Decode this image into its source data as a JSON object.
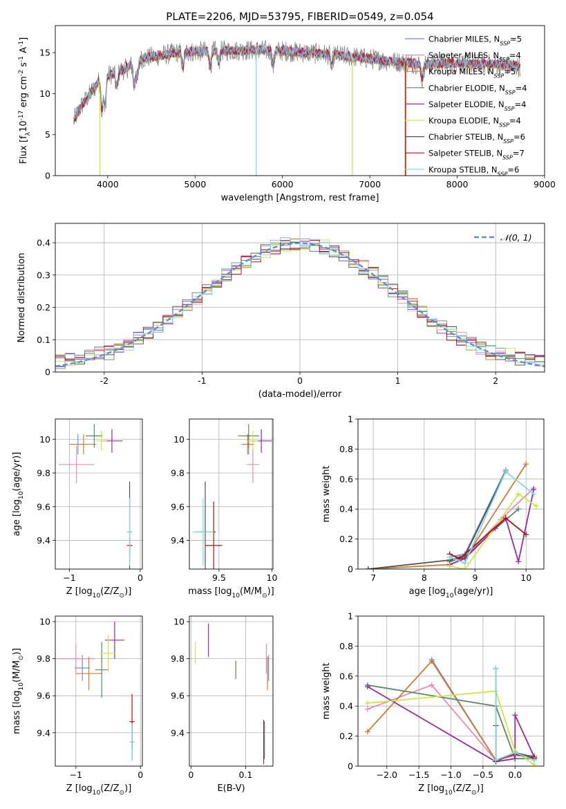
{
  "figure_title": "PLATE=2206, MJD=53795, FIBERID=0549, z=0.054",
  "colors": {
    "chabrier_miles": "#6a8fd8",
    "salpeter_miles": "#e888b8",
    "kroupa_miles": "#d47a30",
    "chabrier_elodie": "#5a8a60",
    "salpeter_elodie": "#9a28a8",
    "kroupa_elodie": "#c8e840",
    "chabrier_stelib": "#505050",
    "salpeter_stelib": "#b01010",
    "kroupa_stelib": "#80d8e0",
    "gauss": "#5b8fd5",
    "grid": "#b0b0b0"
  },
  "chart_data": [
    {
      "id": "spectrum",
      "type": "line",
      "title": "PLATE=2206, MJD=53795, FIBERID=0549, z=0.054",
      "xlabel": "wavelength [Angstrom, rest frame]",
      "ylabel": "Flux [f$_\\lambda$10$^{-17}$ erg cm$^{-2}$ s$^{-1}$ A$^{-1}$]",
      "xlim": [
        3400,
        9000
      ],
      "ylim": [
        0,
        18.3
      ],
      "xticks": [
        4000,
        5000,
        6000,
        7000,
        8000,
        9000
      ],
      "yticks": [
        0,
        5,
        10,
        15
      ],
      "grid": false,
      "legend_position": "right",
      "legend": [
        {
          "base": "Chabrier MILES, N",
          "sub": "SSP",
          "tail": "=5",
          "color_key": "chabrier_miles"
        },
        {
          "base": "Salpeter MILES, N",
          "sub": "SSP",
          "tail": "=4",
          "color_key": "salpeter_miles"
        },
        {
          "base": "Kroupa MILES, N",
          "sub": "SSP",
          "tail": "=5",
          "color_key": "kroupa_miles"
        },
        {
          "base": "Chabrier ELODIE, N",
          "sub": "SSP",
          "tail": "=4",
          "color_key": "chabrier_elodie"
        },
        {
          "base": "Salpeter ELODIE, N",
          "sub": "SSP",
          "tail": "=4",
          "color_key": "salpeter_elodie"
        },
        {
          "base": "Kroupa ELODIE, N",
          "sub": "SSP",
          "tail": "=4",
          "color_key": "kroupa_elodie"
        },
        {
          "base": "Chabrier STELIB, N",
          "sub": "SSP",
          "tail": "=6",
          "color_key": "chabrier_stelib"
        },
        {
          "base": "Salpeter STELIB, N",
          "sub": "SSP",
          "tail": "=7",
          "color_key": "salpeter_stelib"
        },
        {
          "base": "Kroupa STELIB, N",
          "sub": "SSP",
          "tail": "=6",
          "color_key": "kroupa_stelib"
        }
      ],
      "continuum": [
        [
          3600,
          6.5
        ],
        [
          3700,
          8.5
        ],
        [
          3800,
          10.0
        ],
        [
          3900,
          11.5
        ],
        [
          4000,
          12.2
        ],
        [
          4200,
          13.0
        ],
        [
          4400,
          14.3
        ],
        [
          4800,
          15.0
        ],
        [
          5200,
          15.2
        ],
        [
          5600,
          15.3
        ],
        [
          6000,
          15.2
        ],
        [
          6400,
          14.9
        ],
        [
          6800,
          14.5
        ],
        [
          7200,
          14.0
        ],
        [
          7600,
          13.6
        ],
        [
          8000,
          13.7
        ],
        [
          8400,
          13.6
        ],
        [
          8700,
          13.3
        ]
      ],
      "spike_drops": [
        {
          "x": 3910,
          "color_key": "kroupa_elodie"
        },
        {
          "x": 5700,
          "color_key": "kroupa_stelib"
        },
        {
          "x": 6800,
          "color_key": "kroupa_elodie"
        },
        {
          "x": 7405,
          "color_key": "kroupa_miles"
        },
        {
          "x": 7410,
          "color_key": "salpeter_stelib"
        }
      ]
    },
    {
      "id": "residuals",
      "type": "histogram",
      "xlabel": "(data-model)/error",
      "ylabel": "Normed distribution",
      "xlim": [
        -2.5,
        2.5
      ],
      "ylim": [
        0,
        0.46
      ],
      "xticks": [
        -2,
        -1,
        0,
        1,
        2
      ],
      "yticks": [
        0.0,
        0.1,
        0.2,
        0.3,
        0.4
      ],
      "grid": true,
      "bin_width": 0.1,
      "legend": {
        "label": "𝒩(0, 1)",
        "position": "top-right"
      }
    },
    {
      "id": "age_vs_Z",
      "type": "errorbar",
      "xlabel": "Z [log$_{10}$(Z/Z$_\\odot$)]",
      "ylabel": "age  [log$_{10}$(age/yr)]",
      "xlim": [
        -1.2,
        0.03
      ],
      "ylim": [
        9.23,
        10.12
      ],
      "xticks": [
        -1,
        0
      ],
      "xticklabels": [
        "−1",
        "0"
      ],
      "yticks": [
        9.4,
        9.6,
        9.8,
        10.0
      ],
      "grid": true,
      "points": [
        {
          "x": -0.88,
          "y": 9.97,
          "xerr": 0.12,
          "yerr": 0.06,
          "color_key": "chabrier_miles"
        },
        {
          "x": -0.9,
          "y": 9.85,
          "xerr": 0.25,
          "yerr": 0.11,
          "color_key": "salpeter_miles"
        },
        {
          "x": -0.8,
          "y": 9.97,
          "xerr": 0.18,
          "yerr": 0.06,
          "color_key": "kroupa_miles"
        },
        {
          "x": -0.65,
          "y": 10.02,
          "xerr": 0.12,
          "yerr": 0.07,
          "color_key": "chabrier_elodie"
        },
        {
          "x": -0.4,
          "y": 9.99,
          "xerr": 0.15,
          "yerr": 0.07,
          "color_key": "salpeter_elodie"
        },
        {
          "x": -0.55,
          "y": 9.99,
          "xerr": 0.08,
          "yerr": 0.06,
          "color_key": "kroupa_elodie"
        },
        {
          "x": -0.15,
          "y": 9.45,
          "xerr": 0.03,
          "yerr": 0.3,
          "color_key": "chabrier_stelib"
        },
        {
          "x": -0.15,
          "y": 9.37,
          "xerr": 0.04,
          "yerr": 0.05,
          "color_key": "salpeter_stelib"
        },
        {
          "x": -0.15,
          "y": 9.45,
          "xerr": 0.04,
          "yerr": 0.2,
          "color_key": "kroupa_stelib"
        }
      ]
    },
    {
      "id": "age_vs_mass",
      "type": "errorbar",
      "xlabel": "mass [log$_{10}$(M/M$_\\odot$)]",
      "ylabel": "",
      "xlim": [
        9.22,
        10.01
      ],
      "ylim": [
        9.23,
        10.12
      ],
      "xticks": [
        9.5,
        10.0
      ],
      "yticks": [
        9.4,
        9.6,
        9.8,
        10.0
      ],
      "grid": true,
      "points": [
        {
          "x": 9.78,
          "y": 9.97,
          "xerr": 0.05,
          "yerr": 0.06,
          "color_key": "chabrier_miles"
        },
        {
          "x": 9.82,
          "y": 9.85,
          "xerr": 0.06,
          "yerr": 0.11,
          "color_key": "salpeter_miles"
        },
        {
          "x": 9.77,
          "y": 9.97,
          "xerr": 0.06,
          "yerr": 0.06,
          "color_key": "kroupa_miles"
        },
        {
          "x": 9.78,
          "y": 10.02,
          "xerr": 0.1,
          "yerr": 0.07,
          "color_key": "chabrier_elodie"
        },
        {
          "x": 9.9,
          "y": 9.99,
          "xerr": 0.1,
          "yerr": 0.07,
          "color_key": "salpeter_elodie"
        },
        {
          "x": 9.82,
          "y": 9.99,
          "xerr": 0.05,
          "yerr": 0.06,
          "color_key": "kroupa_elodie"
        },
        {
          "x": 9.37,
          "y": 9.45,
          "xerr": 0.1,
          "yerr": 0.3,
          "color_key": "chabrier_stelib"
        },
        {
          "x": 9.45,
          "y": 9.37,
          "xerr": 0.08,
          "yerr": 0.26,
          "color_key": "salpeter_stelib"
        },
        {
          "x": 9.35,
          "y": 9.45,
          "xerr": 0.1,
          "yerr": 0.2,
          "color_key": "kroupa_stelib"
        }
      ]
    },
    {
      "id": "massweight_vs_age",
      "type": "line",
      "xlabel": "age  [log$_{10}$(age/yr)]",
      "ylabel": "mass weight",
      "xlim": [
        6.7,
        10.35
      ],
      "ylim": [
        0,
        1.0
      ],
      "xticks": [
        7,
        8,
        9,
        10
      ],
      "yticks": [
        0.0,
        0.2,
        0.4,
        0.6,
        0.8,
        1.0
      ],
      "grid": true,
      "marker": "+",
      "series": [
        {
          "color_key": "chabrier_miles",
          "x": [
            8.5,
            8.8,
            9.6
          ],
          "y": [
            0.08,
            0.1,
            0.66
          ]
        },
        {
          "color_key": "salpeter_miles",
          "x": [
            8.5,
            8.8,
            9.5,
            10.15
          ],
          "y": [
            0.05,
            0.08,
            0.33,
            0.54
          ]
        },
        {
          "color_key": "kroupa_miles",
          "x": [
            6.9,
            8.5,
            8.8,
            10.0
          ],
          "y": [
            0.0,
            0.03,
            0.07,
            0.7
          ]
        },
        {
          "color_key": "chabrier_elodie",
          "x": [
            8.5,
            8.8,
            9.4,
            9.85
          ],
          "y": [
            0.05,
            0.08,
            0.27,
            0.4
          ]
        },
        {
          "color_key": "salpeter_elodie",
          "x": [
            8.5,
            8.8,
            9.6,
            9.85,
            10.15
          ],
          "y": [
            0.03,
            0.07,
            0.34,
            0.05,
            0.53
          ]
        },
        {
          "color_key": "kroupa_elodie",
          "x": [
            8.5,
            8.8,
            9.85,
            10.2
          ],
          "y": [
            0.02,
            0.0,
            0.5,
            0.42
          ]
        },
        {
          "color_key": "chabrier_stelib",
          "x": [
            6.9,
            8.5,
            8.8,
            9.6
          ],
          "y": [
            0.0,
            0.06,
            0.09,
            0.65
          ]
        },
        {
          "color_key": "salpeter_stelib",
          "x": [
            8.5,
            8.7,
            9.6,
            10.0
          ],
          "y": [
            0.1,
            0.07,
            0.34,
            0.23
          ]
        },
        {
          "color_key": "kroupa_stelib",
          "x": [
            8.5,
            8.8,
            9.6,
            10.15
          ],
          "y": [
            0.08,
            0.04,
            0.65,
            0.5
          ]
        }
      ]
    },
    {
      "id": "mass_vs_Z",
      "type": "errorbar",
      "xlabel": "Z [log$_{10}$(Z/Z$_\\odot$)]",
      "ylabel": "mass [log$_{10}$(M/M$_\\odot$)]",
      "xlim": [
        -1.32,
        0.03
      ],
      "ylim": [
        9.22,
        10.03
      ],
      "xticks": [
        -1,
        0
      ],
      "xticklabels": [
        "−1",
        "0"
      ],
      "yticks": [
        9.4,
        9.6,
        9.8,
        10.0
      ],
      "grid": true,
      "points": [
        {
          "x": -0.9,
          "y": 9.75,
          "xerr": 0.12,
          "yerr": 0.07,
          "color_key": "chabrier_miles"
        },
        {
          "x": -1.0,
          "y": 9.8,
          "xerr": 0.3,
          "yerr": 0.08,
          "color_key": "salpeter_miles"
        },
        {
          "x": -0.8,
          "y": 9.72,
          "xerr": 0.2,
          "yerr": 0.09,
          "color_key": "kroupa_miles"
        },
        {
          "x": -0.6,
          "y": 9.74,
          "xerr": 0.1,
          "yerr": 0.15,
          "color_key": "chabrier_elodie"
        },
        {
          "x": -0.4,
          "y": 9.9,
          "xerr": 0.15,
          "yerr": 0.1,
          "color_key": "salpeter_elodie"
        },
        {
          "x": -0.5,
          "y": 9.83,
          "xerr": 0.12,
          "yerr": 0.1,
          "color_key": "kroupa_elodie"
        },
        {
          "x": -0.13,
          "y": 9.35,
          "xerr": 0.03,
          "yerr": 0.1,
          "color_key": "chabrier_stelib"
        },
        {
          "x": -0.13,
          "y": 9.46,
          "xerr": 0.04,
          "yerr": 0.15,
          "color_key": "salpeter_stelib"
        },
        {
          "x": -0.13,
          "y": 9.35,
          "xerr": 0.04,
          "yerr": 0.1,
          "color_key": "kroupa_stelib"
        }
      ]
    },
    {
      "id": "mass_vs_EBV",
      "type": "errorbar",
      "xlabel": "E(B-V)",
      "ylabel": "",
      "xlim": [
        -0.003,
        0.15
      ],
      "ylim": [
        9.22,
        10.03
      ],
      "xticks": [
        0.0,
        0.1
      ],
      "yticks": [
        9.4,
        9.6,
        9.8,
        10.0
      ],
      "grid": true,
      "points": [
        {
          "x": 0.142,
          "y": 9.75,
          "xerr": 0.0,
          "yerr": 0.07,
          "color_key": "chabrier_miles"
        },
        {
          "x": 0.138,
          "y": 9.8,
          "xerr": 0.0,
          "yerr": 0.08,
          "color_key": "salpeter_miles"
        },
        {
          "x": 0.14,
          "y": 9.72,
          "xerr": 0.0,
          "yerr": 0.09,
          "color_key": "kroupa_miles"
        },
        {
          "x": 0.082,
          "y": 9.74,
          "xerr": 0.0,
          "yerr": 0.05,
          "color_key": "chabrier_elodie"
        },
        {
          "x": 0.032,
          "y": 9.9,
          "xerr": 0.0,
          "yerr": 0.09,
          "color_key": "salpeter_elodie"
        },
        {
          "x": 0.008,
          "y": 9.83,
          "xerr": 0.0,
          "yerr": 0.06,
          "color_key": "kroupa_elodie"
        },
        {
          "x": 0.133,
          "y": 9.35,
          "xerr": 0.0,
          "yerr": 0.12,
          "color_key": "chabrier_stelib"
        },
        {
          "x": 0.134,
          "y": 9.36,
          "xerr": 0.0,
          "yerr": 0.1,
          "color_key": "salpeter_stelib"
        },
        {
          "x": 0.135,
          "y": 9.36,
          "xerr": 0.0,
          "yerr": 0.09,
          "color_key": "kroupa_stelib"
        }
      ]
    },
    {
      "id": "massweight_vs_Z",
      "type": "line",
      "xlabel": "Z [log$_{10}$(Z/Z$_\\odot$)]",
      "ylabel": "mass weight",
      "xlim": [
        -2.45,
        0.45
      ],
      "ylim": [
        0,
        1.0
      ],
      "xticks": [
        -2.0,
        -1.5,
        -1.0,
        -0.5,
        0.0
      ],
      "xticklabels": [
        "−2.0",
        "−1.5",
        "−1.0",
        "−0.5",
        "0.0"
      ],
      "yticks": [
        0.0,
        0.2,
        0.4,
        0.6,
        0.8,
        1.0
      ],
      "grid": true,
      "marker": "+",
      "series": [
        {
          "color_key": "chabrier_miles",
          "x": [
            -1.3,
            -0.3,
            0.0,
            0.3
          ],
          "y": [
            0.71,
            0.04,
            0.09,
            0.05
          ]
        },
        {
          "color_key": "salpeter_miles",
          "x": [
            -2.3,
            -1.3,
            -0.3,
            0.0,
            0.3
          ],
          "y": [
            0.38,
            0.54,
            0.04,
            0.07,
            0.07
          ]
        },
        {
          "color_key": "kroupa_miles",
          "x": [
            -2.3,
            -1.3,
            -0.3,
            0.0,
            0.3
          ],
          "y": [
            0.23,
            0.7,
            0.04,
            0.08,
            0.05
          ]
        },
        {
          "color_key": "chabrier_elodie",
          "x": [
            -2.3,
            -0.3,
            0.0,
            0.3
          ],
          "y": [
            0.54,
            0.4,
            0.05,
            0.05
          ]
        },
        {
          "color_key": "salpeter_elodie",
          "x": [
            -2.3,
            -0.3,
            0.0,
            0.0,
            0.3
          ],
          "y": [
            0.53,
            0.03,
            0.05,
            0.34,
            0.06
          ]
        },
        {
          "color_key": "kroupa_elodie",
          "x": [
            -2.3,
            -0.3,
            0.0,
            0.3
          ],
          "y": [
            0.42,
            0.5,
            0.1,
            0.01
          ]
        },
        {
          "color_key": "chabrier_stelib",
          "x": [
            -0.3,
            -0.3,
            0.0,
            0.3
          ],
          "y": [
            0.65,
            0.03,
            0.09,
            0.06
          ]
        },
        {
          "color_key": "salpeter_stelib",
          "x": [
            -0.3,
            -0.3,
            0.0,
            0.3
          ],
          "y": [
            0.27,
            0.04,
            0.08,
            0.05
          ]
        },
        {
          "color_key": "kroupa_stelib",
          "x": [
            -0.3,
            -0.3,
            0.0,
            0.3
          ],
          "y": [
            0.65,
            0.04,
            0.09,
            0.04
          ]
        }
      ]
    }
  ]
}
